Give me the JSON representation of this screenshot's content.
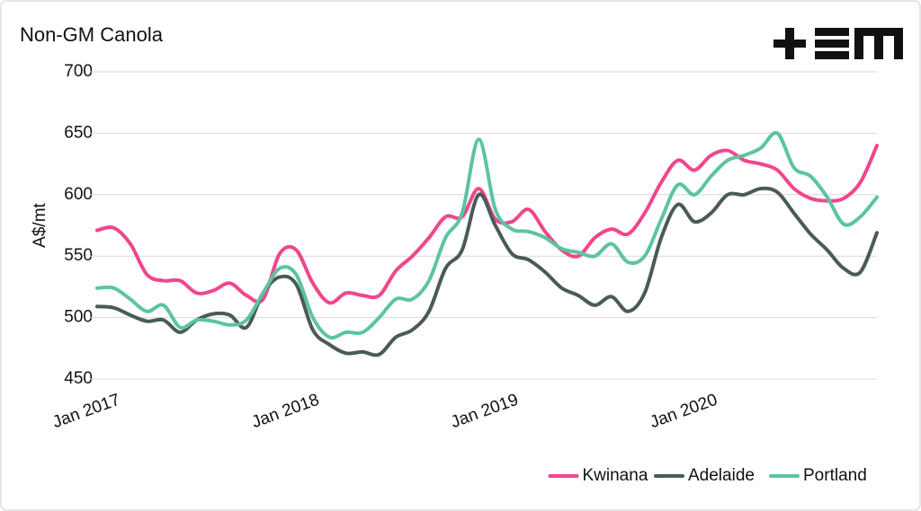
{
  "chart_data": {
    "type": "line",
    "title": "Non-GM Canola",
    "y_label": "A$/mt",
    "categories": [
      "Jan 2017",
      null,
      null,
      null,
      null,
      null,
      null,
      null,
      null,
      null,
      null,
      null,
      "Jan 2018",
      null,
      null,
      null,
      null,
      null,
      null,
      null,
      null,
      null,
      null,
      null,
      "Jan 2019",
      null,
      null,
      null,
      null,
      null,
      null,
      null,
      null,
      null,
      null,
      null,
      "Jan 2020",
      null,
      null,
      null,
      null,
      null,
      null,
      null,
      null,
      null,
      null,
      null
    ],
    "series": [
      {
        "name": "Kwinana",
        "color": "#f0468c",
        "values": [
          571,
          573,
          560,
          535,
          530,
          530,
          520,
          522,
          528,
          518,
          515,
          552,
          555,
          528,
          512,
          520,
          518,
          518,
          538,
          550,
          565,
          582,
          582,
          605,
          580,
          578,
          588,
          570,
          555,
          550,
          565,
          572,
          568,
          585,
          610,
          628,
          620,
          632,
          636,
          628,
          625,
          620,
          605,
          597,
          595,
          597,
          610,
          640
        ]
      },
      {
        "name": "Adelaide",
        "color": "#4a5a5a",
        "values": [
          509,
          508,
          502,
          497,
          498,
          488,
          498,
          503,
          502,
          492,
          520,
          533,
          527,
          490,
          478,
          471,
          472,
          470,
          484,
          490,
          505,
          540,
          555,
          600,
          575,
          552,
          547,
          537,
          524,
          518,
          510,
          517,
          505,
          520,
          565,
          592,
          578,
          585,
          600,
          600,
          605,
          602,
          585,
          568,
          555,
          540,
          537,
          569
        ]
      },
      {
        "name": "Portland",
        "color": "#5cc4a0",
        "values": [
          524,
          524,
          515,
          505,
          510,
          492,
          498,
          497,
          494,
          498,
          520,
          540,
          535,
          500,
          484,
          488,
          488,
          500,
          515,
          515,
          530,
          565,
          585,
          645,
          588,
          572,
          570,
          565,
          556,
          553,
          550,
          560,
          545,
          550,
          580,
          608,
          600,
          615,
          628,
          632,
          638,
          650,
          622,
          615,
          598,
          576,
          582,
          598
        ]
      }
    ],
    "ylim": [
      450,
      700
    ],
    "yticks": [
      450,
      500,
      550,
      600,
      650,
      700
    ],
    "grid": true,
    "legend": "bottom-right"
  }
}
